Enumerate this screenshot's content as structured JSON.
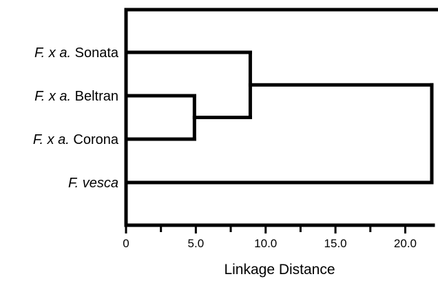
{
  "chart_data": {
    "type": "dendrogram",
    "title": "",
    "xlabel": "Linkage Distance",
    "ylabel": "",
    "xlim": [
      0,
      22
    ],
    "x_ticks": [
      {
        "value": 0,
        "label": "0"
      },
      {
        "value": 5,
        "label": "5.0"
      },
      {
        "value": 10,
        "label": "10.0"
      },
      {
        "value": 15,
        "label": "15.0"
      },
      {
        "value": 20,
        "label": "20.0"
      }
    ],
    "minor_ticks": [
      2.5,
      7.5,
      12.5,
      17.5
    ],
    "leaves": [
      {
        "id": "sonata",
        "italic": "F. x a.",
        "plain": " Sonata"
      },
      {
        "id": "beltran",
        "italic": "F. x a.",
        "plain": " Beltran"
      },
      {
        "id": "corona",
        "italic": "F. x a.",
        "plain": " Corona"
      },
      {
        "id": "vesca",
        "italic": "F. vesca",
        "plain": ""
      }
    ],
    "merges": [
      {
        "children": [
          "beltran",
          "corona"
        ],
        "height": 4.9
      },
      {
        "children": [
          "sonata",
          "beltran+corona"
        ],
        "height": 8.9
      },
      {
        "children": [
          "sonata+beltran+corona",
          "vesca"
        ],
        "height": 21.9
      }
    ],
    "grid": false,
    "legend": "none",
    "colors": {
      "line": "#000000",
      "background": "#ffffff"
    }
  }
}
